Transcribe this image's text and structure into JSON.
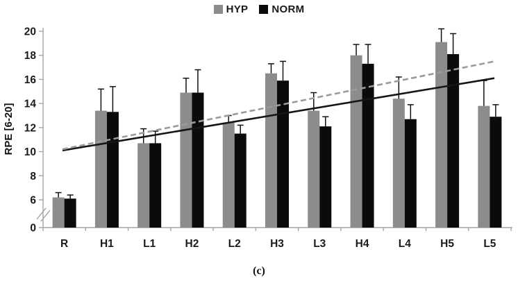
{
  "figure": {
    "caption": "(c)"
  },
  "chart_data": {
    "type": "bar",
    "title": "",
    "xlabel": "",
    "ylabel": "RPE [6-20]",
    "categories": [
      "R",
      "H1",
      "L1",
      "H2",
      "L2",
      "H3",
      "L3",
      "H4",
      "L4",
      "H5",
      "L5"
    ],
    "series": [
      {
        "name": "HYP",
        "color": "#8c8c8c",
        "values": [
          6.2,
          13.4,
          10.7,
          14.9,
          12.4,
          16.5,
          13.4,
          18.0,
          14.4,
          19.1,
          13.8
        ],
        "errors_up": [
          0.4,
          1.8,
          1.2,
          1.2,
          0.6,
          0.8,
          1.5,
          0.9,
          1.8,
          1.1,
          2.1
        ]
      },
      {
        "name": "NORM",
        "color": "#0b0b0b",
        "values": [
          6.1,
          13.3,
          10.7,
          14.9,
          11.5,
          15.9,
          12.1,
          17.3,
          12.7,
          18.1,
          12.9
        ],
        "errors_up": [
          0.3,
          2.1,
          1.0,
          1.9,
          0.7,
          1.6,
          0.8,
          1.6,
          1.2,
          1.7,
          1.0
        ]
      }
    ],
    "y_axis": {
      "ticks": [
        0,
        6,
        8,
        10,
        12,
        14,
        16,
        18,
        20
      ],
      "range_shown": [
        6,
        20
      ],
      "break_between": [
        0,
        6
      ],
      "axis_color": "#a6a6a6"
    },
    "trendlines": [
      {
        "series": "NORM",
        "style": "solid",
        "color": "#161616",
        "start_value": 10.1,
        "end_value": 16.1
      },
      {
        "series": "HYP",
        "style": "dashed",
        "color": "#9b9b9b",
        "start_value": 10.2,
        "end_value": 17.5
      }
    ],
    "legend_position": "top-center",
    "grid": false
  }
}
